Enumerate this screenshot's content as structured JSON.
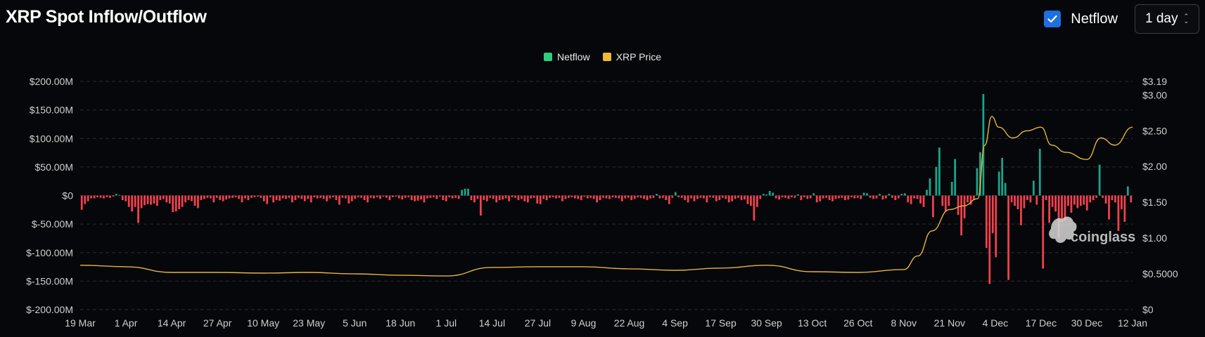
{
  "header": {
    "title": "XRP Spot Inflow/Outflow",
    "netflow_checkbox_label": "Netflow",
    "netflow_checked": true,
    "interval_value": "1 day"
  },
  "watermark": "coinglass",
  "colors": {
    "positive": "#1aa58a",
    "negative": "#f2414e",
    "price": "#e5b53a",
    "legend_netflow": "#2ecc80",
    "legend_price": "#f0b93a"
  },
  "chart_data": {
    "type": "bar",
    "legend": [
      {
        "name": "Netflow",
        "color": "#2ecc80"
      },
      {
        "name": "XRP Price",
        "color": "#f0b93a"
      }
    ],
    "x_ticks": [
      "19 Mar",
      "1 Apr",
      "14 Apr",
      "27 Apr",
      "10 May",
      "23 May",
      "5 Jun",
      "18 Jun",
      "1 Jul",
      "14 Jul",
      "27 Jul",
      "9 Aug",
      "22 Aug",
      "4 Sep",
      "17 Sep",
      "30 Sep",
      "13 Oct",
      "26 Oct",
      "8 Nov",
      "21 Nov",
      "4 Dec",
      "17 Dec",
      "30 Dec",
      "12 Jan"
    ],
    "y_left": {
      "ylim": [
        -200,
        200
      ],
      "ticks": [
        200,
        150,
        100,
        50,
        0,
        -50,
        -100,
        -150,
        -200
      ],
      "tick_labels": [
        "$200.00M",
        "$150.00M",
        "$100.00M",
        "$50.00M",
        "$0",
        "$-50.00M",
        "$-100.00M",
        "$-150.00M",
        "$-200.00M"
      ]
    },
    "y_right": {
      "ylim": [
        0,
        3.19
      ],
      "ticks": [
        3.19,
        3.0,
        2.5,
        2.0,
        1.5,
        1.0,
        0.5,
        0
      ],
      "tick_labels": [
        "$3.19",
        "$3.00",
        "$2.50",
        "$2.00",
        "$1.50",
        "$1.00",
        "$0.5000",
        "$0"
      ]
    },
    "grid": true,
    "legend_position": "top-center",
    "series": [
      {
        "name": "Netflow",
        "type": "bar",
        "unit": "M USD",
        "start_date": "19 Mar",
        "values": [
          -25,
          -15,
          -10,
          -5,
          -5,
          -3,
          -4,
          -5,
          -3,
          -4,
          -2,
          3,
          1,
          -8,
          -10,
          -20,
          -28,
          -20,
          -48,
          -22,
          -17,
          -15,
          -16,
          -14,
          -18,
          -8,
          -6,
          -12,
          -14,
          -29,
          -28,
          -24,
          -20,
          -12,
          -8,
          -10,
          -18,
          -22,
          -8,
          -6,
          -4,
          -5,
          -12,
          -4,
          -8,
          -10,
          -7,
          -5,
          -4,
          -3,
          -6,
          -12,
          -5,
          -8,
          -4,
          -3,
          -2,
          -4,
          -10,
          -15,
          -3,
          -12,
          -8,
          -9,
          -5,
          -6,
          -4,
          -12,
          -8,
          -4,
          -6,
          -10,
          -6,
          -12,
          -3,
          -5,
          -4,
          -6,
          -10,
          -5,
          -3,
          -8,
          -16,
          -4,
          -5,
          -14,
          -10,
          -6,
          -3,
          -4,
          -8,
          -12,
          -4,
          -5,
          -3,
          -6,
          -2,
          -4,
          -8,
          -3,
          -2,
          -5,
          -7,
          -4,
          -3,
          -8,
          -10,
          -9,
          -7,
          -12,
          -5,
          -4,
          -3,
          -6,
          -2,
          -8,
          -10,
          -3,
          -5,
          -4,
          -6,
          10,
          12,
          12,
          -8,
          -12,
          -6,
          -35,
          -8,
          -10,
          -4,
          -6,
          -12,
          -8,
          -7,
          -5,
          -10,
          -3,
          -4,
          -8,
          -6,
          -10,
          -12,
          -5,
          -4,
          -14,
          -15,
          -6,
          -8,
          -4,
          -3,
          -5,
          -4,
          -10,
          -6,
          -4,
          -3,
          -5,
          -6,
          -8,
          -2,
          -5,
          -4,
          -6,
          -12,
          -8,
          -4,
          -5,
          -6,
          -3,
          -4,
          -5,
          -10,
          -5,
          -4,
          -8,
          -6,
          -3,
          -4,
          -6,
          -8,
          -5,
          -4,
          3,
          -5,
          -4,
          -8,
          -15,
          -4,
          6,
          -3,
          -4,
          -8,
          -12,
          -5,
          -10,
          -6,
          -4,
          -5,
          -12,
          -3,
          -4,
          -10,
          -8,
          -4,
          -6,
          -12,
          -10,
          -6,
          -4,
          -8,
          -7,
          -15,
          -18,
          -44,
          -20,
          -6,
          3,
          2,
          8,
          5,
          -5,
          -7,
          -3,
          -4,
          -6,
          -3,
          -4,
          2,
          -8,
          -3,
          -6,
          -5,
          4,
          -12,
          -10,
          -5,
          -4,
          -8,
          -10,
          -6,
          -5,
          -4,
          -8,
          -7,
          -3,
          -5,
          -4,
          -6,
          5,
          4,
          -4,
          -6,
          -5,
          3,
          -7,
          -5,
          3,
          -4,
          -8,
          -5,
          3,
          4,
          -12,
          -15,
          -5,
          -6,
          -14,
          -20,
          10,
          30,
          -38,
          50,
          84,
          -18,
          -28,
          -18,
          24,
          64,
          -34,
          -70,
          -40,
          -12,
          -16,
          -8,
          48,
          76,
          178,
          -92,
          -155,
          -66,
          -108,
          42,
          66,
          22,
          -148,
          -12,
          -18,
          -24,
          -52,
          -22,
          -8,
          -12,
          26,
          -16,
          82,
          -128,
          -8,
          -48,
          -20,
          -28,
          -74,
          -46,
          -44,
          -18,
          -30,
          -16,
          -22,
          -18,
          -16,
          -26,
          -12,
          -8,
          -4,
          54,
          -4,
          -14,
          -42,
          -8,
          -12,
          -62,
          -24,
          -46,
          16,
          -12
        ]
      },
      {
        "name": "XRP Price",
        "type": "line",
        "unit": "USD",
        "x": [
          "19 Mar",
          "1 Apr",
          "14 Apr",
          "27 Apr",
          "10 May",
          "23 May",
          "5 Jun",
          "18 Jun",
          "1 Jul",
          "14 Jul",
          "27 Jul",
          "9 Aug",
          "22 Aug",
          "4 Sep",
          "17 Sep",
          "30 Sep",
          "13 Oct",
          "26 Oct",
          "8 Nov",
          "12 Nov",
          "16 Nov",
          "21 Nov",
          "25 Nov",
          "29 Nov",
          "1 Dec",
          "3 Dec",
          "5 Dec",
          "9 Dec",
          "13 Dec",
          "17 Dec",
          "20 Dec",
          "24 Dec",
          "30 Dec",
          "3 Jan",
          "7 Jan",
          "12 Jan"
        ],
        "values": [
          0.62,
          0.6,
          0.52,
          0.52,
          0.51,
          0.52,
          0.5,
          0.48,
          0.47,
          0.59,
          0.6,
          0.6,
          0.57,
          0.55,
          0.58,
          0.62,
          0.53,
          0.52,
          0.56,
          0.75,
          1.1,
          1.4,
          1.45,
          1.55,
          2.3,
          2.7,
          2.55,
          2.4,
          2.5,
          2.55,
          2.3,
          2.2,
          2.1,
          2.4,
          2.3,
          2.55
        ]
      }
    ]
  }
}
